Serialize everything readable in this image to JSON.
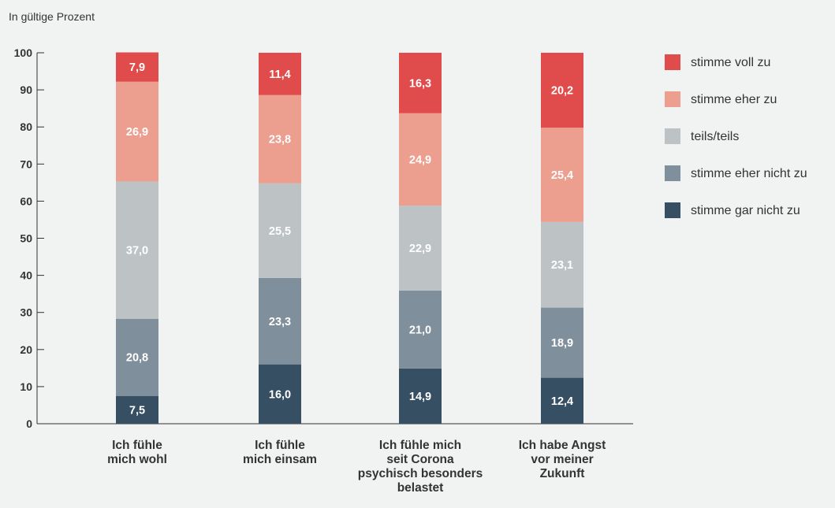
{
  "chart_data": {
    "type": "bar",
    "stacked": true,
    "unit_label": "In gültige Prozent",
    "ylim": [
      0,
      100
    ],
    "yticks": [
      "0",
      "10",
      "20",
      "30",
      "40",
      "50",
      "60",
      "70",
      "80",
      "90",
      "100"
    ],
    "categories": [
      [
        "Ich fühle",
        "mich wohl"
      ],
      [
        "Ich fühle",
        "mich einsam"
      ],
      [
        "Ich fühle mich",
        "seit Corona",
        "psychisch besonders",
        "belastet"
      ],
      [
        "Ich habe Angst",
        "vor meiner",
        "Zukunft"
      ]
    ],
    "series": [
      {
        "name": "stimme gar nicht zu",
        "color": "#364f63",
        "values": [
          7.5,
          16.0,
          14.9,
          12.4
        ],
        "labels": [
          "7,5",
          "16,0",
          "14,9",
          "12,4"
        ]
      },
      {
        "name": "stimme eher nicht zu",
        "color": "#808f9c",
        "values": [
          20.8,
          23.3,
          21.0,
          18.9
        ],
        "labels": [
          "20,8",
          "23,3",
          "21,0",
          "18,9"
        ]
      },
      {
        "name": "teils/teils",
        "color": "#bdc3c5",
        "values": [
          37.0,
          25.5,
          22.9,
          23.1
        ],
        "labels": [
          "37,0",
          "25,5",
          "22,9",
          "23,1"
        ]
      },
      {
        "name": "stimme eher zu",
        "color": "#ec9e8f",
        "values": [
          26.9,
          23.8,
          24.9,
          25.4
        ],
        "labels": [
          "26,9",
          "23,8",
          "24,9",
          "25,4"
        ]
      },
      {
        "name": "stimme voll zu",
        "color": "#e04b4b",
        "values": [
          7.9,
          11.4,
          16.3,
          20.2
        ],
        "labels": [
          "7,9",
          "11,4",
          "16,3",
          "20,2"
        ]
      }
    ],
    "legend": {
      "position": "right",
      "order": [
        "stimme voll zu",
        "stimme eher zu",
        "teils/teils",
        "stimme eher nicht zu",
        "stimme gar nicht zu"
      ]
    },
    "grid": false
  }
}
